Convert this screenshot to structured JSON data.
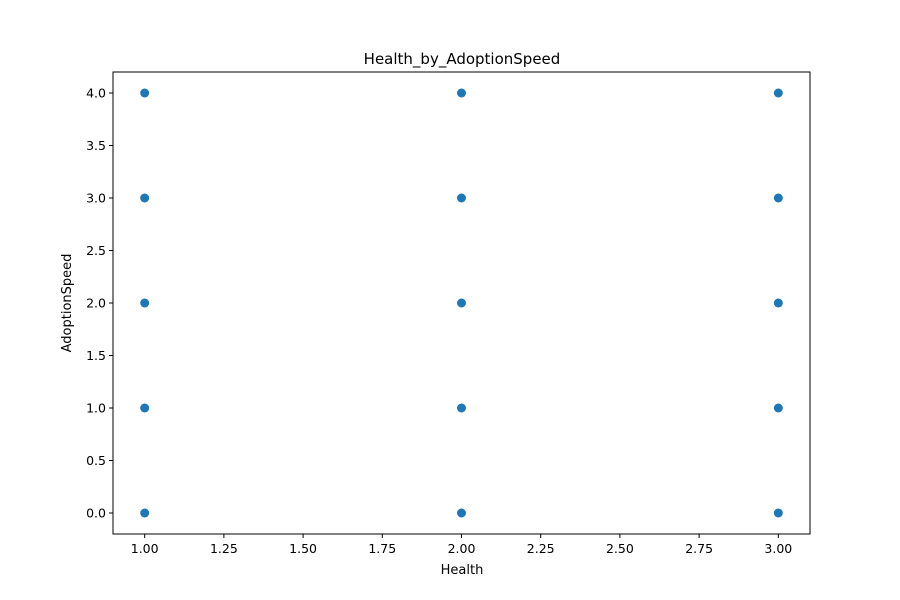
{
  "chart_data": {
    "type": "scatter",
    "title": "Health_by_AdoptionSpeed",
    "xlabel": "Health",
    "ylabel": "AdoptionSpeed",
    "xlim": [
      0.9,
      3.1
    ],
    "ylim": [
      -0.2,
      4.2
    ],
    "xticks": [
      1.0,
      1.25,
      1.5,
      1.75,
      2.0,
      2.25,
      2.5,
      2.75,
      3.0
    ],
    "xtick_labels": [
      "1.00",
      "1.25",
      "1.50",
      "1.75",
      "2.00",
      "2.25",
      "2.50",
      "2.75",
      "3.00"
    ],
    "yticks": [
      0.0,
      0.5,
      1.0,
      1.5,
      2.0,
      2.5,
      3.0,
      3.5,
      4.0
    ],
    "ytick_labels": [
      "0.0",
      "0.5",
      "1.0",
      "1.5",
      "2.0",
      "2.5",
      "3.0",
      "3.5",
      "4.0"
    ],
    "grid": false,
    "point_color": "#1f77b4",
    "points": [
      {
        "x": 1,
        "y": 0
      },
      {
        "x": 1,
        "y": 1
      },
      {
        "x": 1,
        "y": 2
      },
      {
        "x": 1,
        "y": 3
      },
      {
        "x": 1,
        "y": 4
      },
      {
        "x": 2,
        "y": 0
      },
      {
        "x": 2,
        "y": 1
      },
      {
        "x": 2,
        "y": 2
      },
      {
        "x": 2,
        "y": 3
      },
      {
        "x": 2,
        "y": 4
      },
      {
        "x": 3,
        "y": 0
      },
      {
        "x": 3,
        "y": 1
      },
      {
        "x": 3,
        "y": 2
      },
      {
        "x": 3,
        "y": 3
      },
      {
        "x": 3,
        "y": 4
      }
    ]
  }
}
